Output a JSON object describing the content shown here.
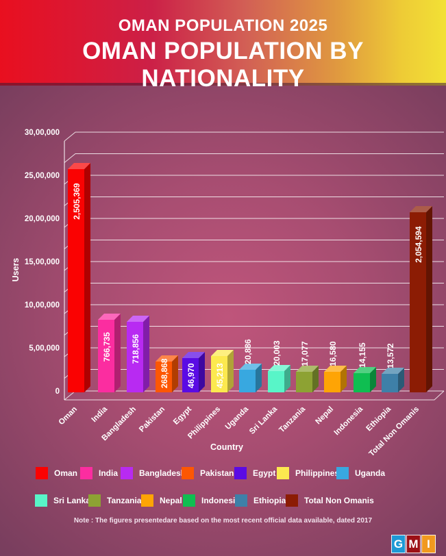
{
  "header": {
    "subtitle": "OMAN POPULATION 2025",
    "title": "OMAN POPULATION BY NATIONALITY"
  },
  "chart_data": {
    "type": "bar",
    "title": "Oman Population by Nationality",
    "xlabel": "Country",
    "ylabel": "Users",
    "ylim": [
      0,
      3000000
    ],
    "y_tick_step_labeled": 500000,
    "y_tick_step_grid": 250000,
    "y_tick_labels": [
      "0",
      "5,00,000",
      "10,00,000",
      "15,00,000",
      "20,00,000",
      "25,00,000",
      "30,00,000"
    ],
    "grid": true,
    "legend_position": "bottom",
    "categories": [
      "Oman",
      "India",
      "Bangladesh",
      "Pakistan",
      "Egypt",
      "Philippines",
      "Uganda",
      "Sri Lanka",
      "Tanzania",
      "Nepal",
      "Indonesia",
      "Ethiopia",
      "Total Non Omanis"
    ],
    "values": [
      2505369,
      766735,
      718856,
      268868,
      46970,
      45213,
      20886,
      20003,
      17077,
      16580,
      14155,
      13572,
      2054594
    ],
    "value_labels": [
      "2,505,369",
      "766,735",
      "718,856",
      "268,868",
      "46,970",
      "45,213",
      "20,886",
      "20,003",
      "17,077",
      "16,580",
      "14,155",
      "13,572",
      "2,054,594"
    ],
    "colors": [
      "#fa0202",
      "#fb2da0",
      "#b82af2",
      "#fd5703",
      "#5a0be4",
      "#fce94f",
      "#38a8e0",
      "#58f5c8",
      "#8da233",
      "#fea405",
      "#0fbe51",
      "#3e80a8",
      "#8c1c04"
    ]
  },
  "note": "Note : The figures presentedare based on the most recent official data available, dated 2017",
  "logo": {
    "letters": [
      "G",
      "M",
      "I"
    ],
    "colors": [
      "#1d99d5",
      "#9c1016",
      "#f1991f"
    ]
  }
}
